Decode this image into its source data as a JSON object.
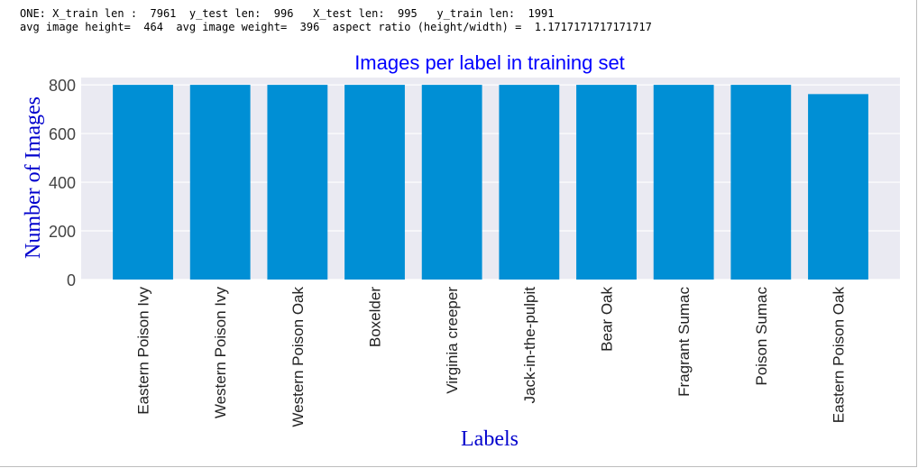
{
  "output": {
    "line1": "ONE: X_train len :  7961  y_test len:  996   X_test len:  995   y_train len:  1991",
    "line2": "avg image height=  464  avg image weight=  396  aspect ratio (height/width) =  1.1717171717171717"
  },
  "chart_data": {
    "type": "bar",
    "title": "Images per label in training set",
    "xlabel": "Labels",
    "ylabel": "Number of Images",
    "categories": [
      "Eastern Poison Ivy",
      "Western Poison Ivy",
      "Western Poison Oak",
      "Boxelder",
      "Virginia creeper",
      "Jack-in-the-pulpit",
      "Bear Oak",
      "Fragrant Sumac",
      "Poison Sumac",
      "Eastern Poison Oak"
    ],
    "values": [
      800,
      800,
      800,
      800,
      800,
      800,
      800,
      800,
      800,
      762
    ],
    "ylim": [
      0,
      830
    ],
    "yticks": [
      0,
      200,
      400,
      600,
      800
    ],
    "grid": true,
    "colors": {
      "bar": "#008fd5",
      "axes_bg": "#eaeaf2",
      "grid": "#ffffff",
      "title": "#0000ff",
      "labels": "#0000cd",
      "ticks": "#444444"
    }
  }
}
